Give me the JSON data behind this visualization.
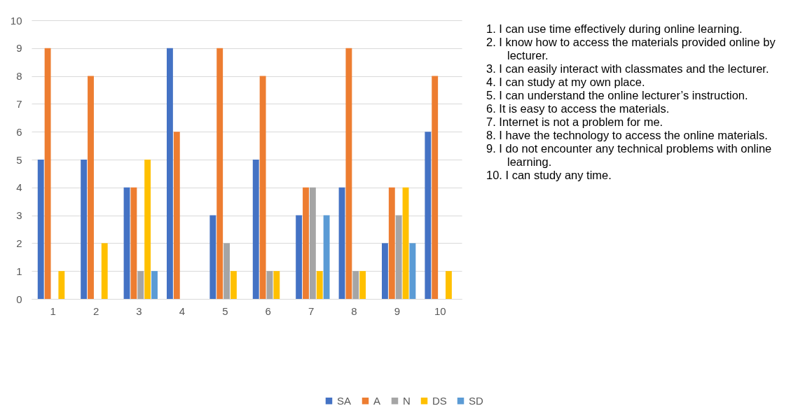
{
  "chart_data": {
    "type": "bar",
    "categories": [
      "1",
      "2",
      "3",
      "4",
      "5",
      "6",
      "7",
      "8",
      "9",
      "10"
    ],
    "series": [
      {
        "name": "SA",
        "color": "#4472c4",
        "values": [
          5,
          5,
          4,
          9,
          3,
          5,
          3,
          4,
          2,
          6
        ]
      },
      {
        "name": "A",
        "color": "#ed7d31",
        "values": [
          9,
          8,
          4,
          6,
          9,
          8,
          4,
          9,
          4,
          8
        ]
      },
      {
        "name": "N",
        "color": "#a5a5a5",
        "values": [
          0,
          0,
          1,
          0,
          2,
          1,
          4,
          1,
          3,
          0
        ]
      },
      {
        "name": "DS",
        "color": "#ffc000",
        "values": [
          1,
          2,
          5,
          0,
          1,
          1,
          1,
          1,
          4,
          1
        ]
      },
      {
        "name": "SD",
        "color": "#5b9bd5",
        "values": [
          0,
          0,
          1,
          0,
          0,
          0,
          3,
          0,
          2,
          0
        ]
      }
    ],
    "ylim": [
      0,
      10
    ],
    "yticks": [
      0,
      1,
      2,
      3,
      4,
      5,
      6,
      7,
      8,
      9,
      10
    ],
    "grid": "y",
    "legend": "bottom",
    "annotations": [
      "1. I can use time effectively during online learning.",
      "2. I know how to access the materials provided online by lecturer.",
      "3. I can easily interact with classmates and the lecturer.",
      "4. I can study at my own place.",
      "5. I can understand the online lecturer’s instruction.",
      "6. It is easy to access the materials.",
      "7. Internet is not a problem for me.",
      "8. I have the technology to access the online materials.",
      "9. I do not encounter any technical problems with online learning.",
      "10. I can study any time."
    ]
  }
}
